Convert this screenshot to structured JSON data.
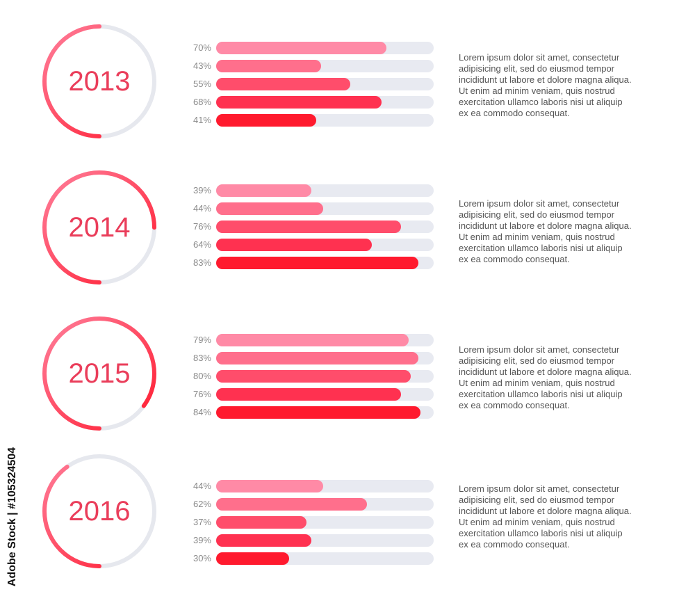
{
  "chart_data": [
    {
      "type": "bar",
      "title": "2013",
      "values": [
        70,
        43,
        55,
        68,
        41
      ],
      "ring_progress": 0.5,
      "text": "Lorem ipsum dolor sit amet, consectetur\nadipisicing elit, sed do eiusmod tempor\nincididunt ut labore et dolore magna aliqua.\nUt enim ad minim veniam, quis nostrud\nexercitation ullamco laboris nisi ut aliquip\nex ea commodo consequat."
    },
    {
      "type": "bar",
      "title": "2014",
      "values": [
        39,
        44,
        76,
        64,
        83
      ],
      "ring_progress": 0.75,
      "text": "Lorem ipsum dolor sit amet, consectetur\nadipisicing elit, sed do eiusmod tempor\nincididunt ut labore et dolore magna aliqua.\nUt enim ad minim veniam, quis nostrud\nexercitation ullamco laboris nisi ut aliquip\nex ea commodo consequat."
    },
    {
      "type": "bar",
      "title": "2015",
      "values": [
        79,
        83,
        80,
        76,
        84
      ],
      "ring_progress": 0.85,
      "text": "Lorem ipsum dolor sit amet, consectetur\nadipisicing elit, sed do eiusmod tempor\nincididunt ut labore et dolore magna aliqua.\nUt enim ad minim veniam, quis nostrud\nexercitation ullamco laboris nisi ut aliquip\nex ea commodo consequat."
    },
    {
      "type": "bar",
      "title": "2016",
      "values": [
        44,
        62,
        37,
        39,
        30
      ],
      "ring_progress": 0.4,
      "text": "Lorem ipsum dolor sit amet, consectetur\nadipisicing elit, sed do eiusmod tempor\nincididunt ut labore et dolore magna aliqua.\nUt enim ad minim veniam, quis nostrud\nexercitation ullamco laboris nisi ut aliquip\nex ea commodo consequat."
    }
  ],
  "colors": {
    "bar_gradient": [
      "#ff8aa6",
      "#ff6f8c",
      "#ff4d6b",
      "#ff3150",
      "#ff1a2e"
    ],
    "track": "#e8eaf1",
    "ring_track": "#e6e8ee",
    "ring_start": "#ff7f9b",
    "ring_end": "#ff1a2e",
    "year_text": "#ea3d5a"
  },
  "watermark": "Adobe Stock | #105324504"
}
